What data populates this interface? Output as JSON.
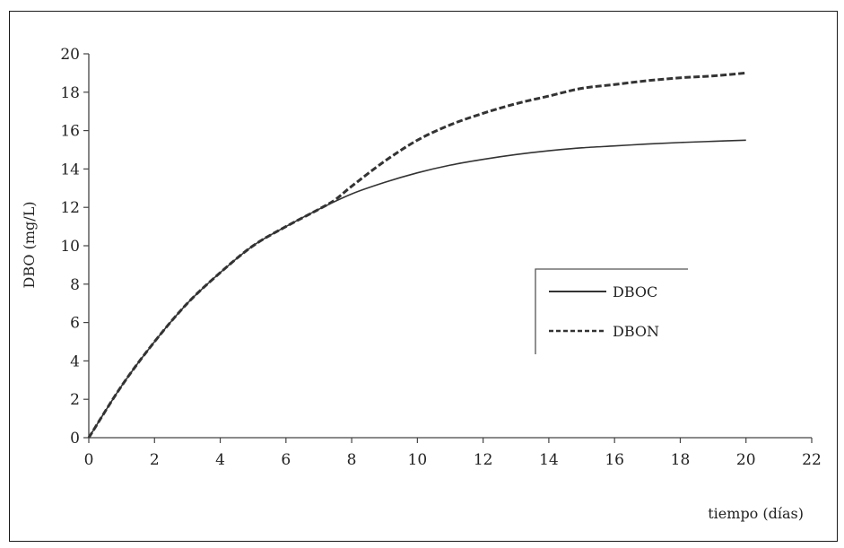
{
  "chart_data": {
    "type": "line",
    "title": "",
    "xlabel": "tiempo (días)",
    "ylabel": "DBO (mg/L)",
    "xlim": [
      0,
      22
    ],
    "ylim": [
      0,
      20
    ],
    "xticks": [
      0,
      2,
      4,
      6,
      8,
      10,
      12,
      14,
      16,
      18,
      20,
      22
    ],
    "yticks": [
      0,
      2,
      4,
      6,
      8,
      10,
      12,
      14,
      16,
      18,
      20
    ],
    "grid": false,
    "legend_position": "right-center",
    "series": [
      {
        "name": "DBOC",
        "style": "solid",
        "color": "#333333",
        "x": [
          0,
          1,
          2,
          3,
          4,
          5,
          6,
          7,
          8,
          9,
          10,
          11,
          12,
          13,
          14,
          15,
          16,
          17,
          18,
          19,
          20
        ],
        "y": [
          0,
          2.7,
          5.0,
          7.0,
          8.6,
          10.0,
          11.0,
          11.9,
          12.7,
          13.3,
          13.8,
          14.2,
          14.5,
          14.75,
          14.95,
          15.1,
          15.2,
          15.3,
          15.38,
          15.44,
          15.5
        ]
      },
      {
        "name": "DBON",
        "style": "dashed",
        "color": "#333333",
        "x": [
          0,
          1,
          2,
          3,
          4,
          5,
          6,
          7,
          7.5,
          8,
          9,
          10,
          11,
          12,
          13,
          14,
          15,
          16,
          17,
          18,
          19,
          20
        ],
        "y": [
          0,
          2.7,
          5.0,
          7.0,
          8.6,
          10.0,
          11.0,
          11.9,
          12.4,
          13.1,
          14.4,
          15.5,
          16.3,
          16.9,
          17.4,
          17.8,
          18.2,
          18.4,
          18.6,
          18.75,
          18.85,
          19.0
        ]
      }
    ]
  }
}
